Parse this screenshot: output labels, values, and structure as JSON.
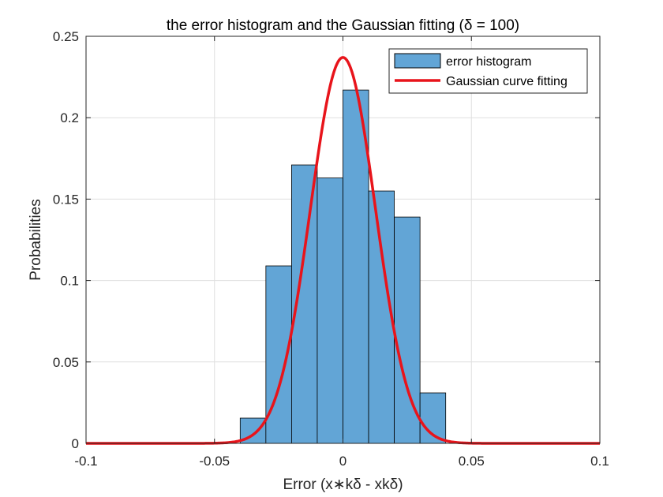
{
  "chart_data": {
    "type": "bar",
    "title": "the error histogram and the Gaussian fitting (δ = 100)",
    "xlabel": "Error (x∗kδ - xkδ)",
    "ylabel": "Probabilities",
    "xlim": [
      -0.1,
      0.1
    ],
    "ylim": [
      0,
      0.25
    ],
    "xticks": [
      -0.1,
      -0.05,
      0,
      0.05,
      0.1
    ],
    "xtick_labels": [
      "-0.1",
      "-0.05",
      "0",
      "0.05",
      "0.1"
    ],
    "yticks": [
      0,
      0.05,
      0.1,
      0.15,
      0.2,
      0.25
    ],
    "ytick_labels": [
      "0",
      "0.05",
      "0.1",
      "0.15",
      "0.2",
      "0.25"
    ],
    "grid": true,
    "legend_position": "top-right",
    "series": [
      {
        "name": "error histogram",
        "kind": "histogram",
        "color": "#62a5d6",
        "edge_color": "#000000",
        "bin_edges": [
          -0.04,
          -0.03,
          -0.02,
          -0.01,
          0.0,
          0.01,
          0.02,
          0.03,
          0.04
        ],
        "values": [
          0.0155,
          0.109,
          0.171,
          0.163,
          0.217,
          0.155,
          0.139,
          0.031
        ]
      },
      {
        "name": "Gaussian curve fitting",
        "kind": "line",
        "color": "#e8141b",
        "mean": 0.0,
        "sigma": 0.0127,
        "peak": 0.237
      }
    ]
  }
}
